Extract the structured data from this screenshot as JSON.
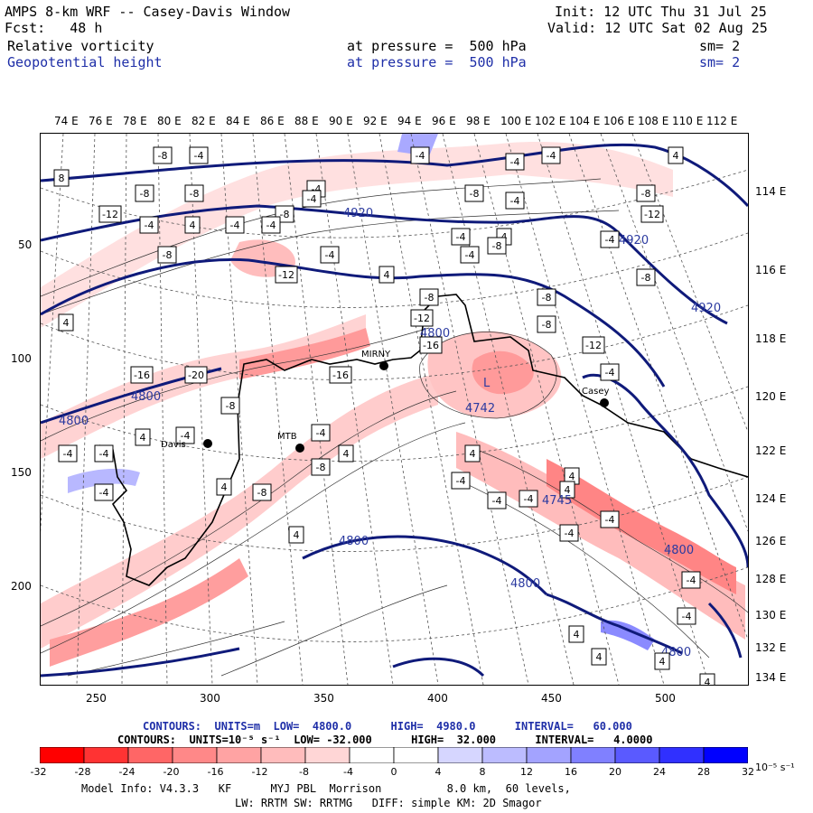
{
  "header": {
    "model_title": "AMPS 8-km WRF -- Casey-Davis Window",
    "init": "Init: 12 UTC Thu 31 Jul 25",
    "fcst": "Fcst:   48 h",
    "valid": "Valid: 12 UTC Sat 02 Aug 25",
    "field1": "Relative vorticity",
    "field1_level": "at pressure =  500 hPa",
    "field1_sm": "sm= 2",
    "field2": "Geopotential height",
    "field2_level": "at pressure =  500 hPa",
    "field2_sm": "sm= 2"
  },
  "axes": {
    "top_lons": [
      "74 E",
      "76 E",
      "78 E",
      "80 E",
      "82 E",
      "84 E",
      "86 E",
      "88 E",
      "90 E",
      "92 E",
      "94 E",
      "96 E",
      "98 E",
      "100 E",
      "102 E",
      "104 E",
      "106 E",
      "108 E",
      "110 E",
      "112 E"
    ],
    "right_lons": [
      "114 E",
      "116 E",
      "118 E",
      "120 E",
      "122 E",
      "124 E",
      "126 E",
      "128 E",
      "130 E",
      "132 E",
      "134 E"
    ],
    "left_y": [
      "50",
      "100",
      "150",
      "200"
    ],
    "bottom_x": [
      "250",
      "300",
      "350",
      "400",
      "450",
      "500"
    ]
  },
  "map": {
    "stations": [
      "Davis",
      "MTB",
      "MIRNY",
      "Casey"
    ],
    "low_label": "L",
    "height_labels": [
      "4920",
      "4920",
      "4920",
      "4800",
      "4800",
      "4800",
      "4800",
      "4800",
      "4800",
      "4800"
    ],
    "center_values": [
      "4742",
      "4745"
    ],
    "vort_box_labels": [
      "-8",
      "-4",
      "-4",
      "-4",
      "-4",
      "4",
      "8",
      "-8",
      "-8",
      "-4",
      "-8",
      "-4",
      "-12",
      "-8",
      "-4",
      "-8",
      "-12",
      "-4",
      "4",
      "-4",
      "-4",
      "-4",
      "-4",
      "4",
      "-4",
      "-8",
      "4",
      "-4",
      "-8",
      "-12",
      "-8",
      "-8",
      "-8",
      "-12",
      "-4",
      "4",
      "-16",
      "-20",
      "-16",
      "-16",
      "-12",
      "-8",
      "-8",
      "4",
      "-4",
      "-4",
      "-4",
      "-4",
      "4",
      "4",
      "-4",
      "-8",
      "-8",
      "-4",
      "-4",
      "-4",
      "4",
      "4",
      "4",
      "4",
      "-4",
      "-4",
      "-4",
      "-4",
      "4",
      "4",
      "4",
      "4"
    ]
  },
  "legend": {
    "contour1": "CONTOURS:  UNITS=m  LOW=  4800.0      HIGH=  4980.0      INTERVAL=   60.000",
    "contour2": "CONTOURS:  UNITS=10⁻⁵ s⁻¹  LOW= -32.000      HIGH=  32.000      INTERVAL=   4.0000",
    "colorbar_ticks": [
      "-32",
      "-28",
      "-24",
      "-20",
      "-16",
      "-12",
      "-8",
      "-4",
      "0",
      "4",
      "8",
      "12",
      "16",
      "20",
      "24",
      "28",
      "32"
    ],
    "colorbar_unit": "10⁻⁵ s⁻¹",
    "colors": [
      "#ff0000",
      "#ff3333",
      "#ff6666",
      "#ff8888",
      "#ffa3a3",
      "#ffbcbc",
      "#ffd6d6",
      "#ffffff",
      "#ffffff",
      "#d6d6ff",
      "#bcbcff",
      "#a3a3ff",
      "#8080ff",
      "#5a5aff",
      "#3030ff",
      "#0000ff"
    ]
  },
  "footer": {
    "line1": "Model Info: V4.3.3   KF      MYJ PBL  Morrison          8.0 km,  60 levels,",
    "line2": "LW: RRTM SW: RRTMG   DIFF: simple KM: 2D Smagor"
  }
}
